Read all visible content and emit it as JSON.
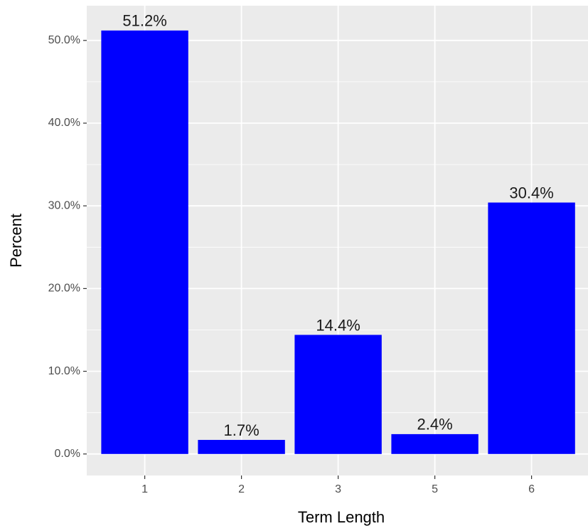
{
  "chart_data": {
    "type": "bar",
    "x_label": "Term Length",
    "y_label": "Percent",
    "categories": [
      "1",
      "2",
      "3",
      "5",
      "6"
    ],
    "values": [
      51.2,
      1.7,
      14.4,
      2.4,
      30.4
    ],
    "value_labels": [
      "51.2%",
      "1.7%",
      "14.4%",
      "2.4%",
      "30.4%"
    ],
    "color": "#0000ff",
    "ylim": [
      -2.6,
      54.2
    ],
    "yticks": [
      {
        "value": 0,
        "label": "0.0%"
      },
      {
        "value": 10,
        "label": "10.0%"
      },
      {
        "value": 20,
        "label": "20.0%"
      },
      {
        "value": 30,
        "label": "30.0%"
      },
      {
        "value": 40,
        "label": "40.0%"
      },
      {
        "value": 50,
        "label": "50.0%"
      }
    ],
    "grid": true
  }
}
